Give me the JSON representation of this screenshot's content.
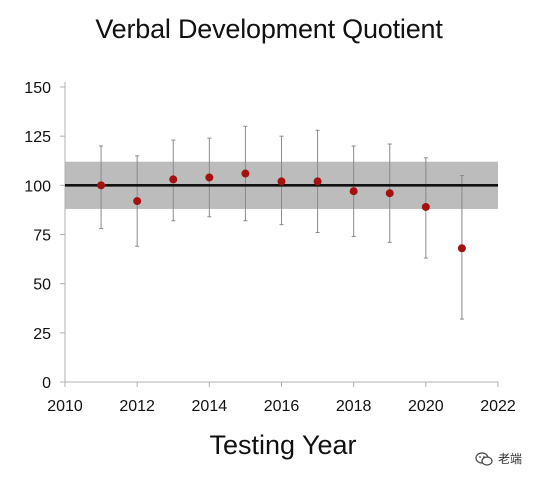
{
  "chart_data": {
    "type": "scatter",
    "title": "Verbal Development Quotient",
    "xlabel": "Testing Year",
    "ylabel": "",
    "xlim": [
      2010,
      2022
    ],
    "ylim": [
      0,
      150
    ],
    "xticks": [
      "2010",
      "2012",
      "2014",
      "2016",
      "2018",
      "2020",
      "2022"
    ],
    "yticks": [
      "0",
      "25",
      "50",
      "75",
      "100",
      "125",
      "150"
    ],
    "grid": false,
    "reference_line": 100,
    "reference_band": [
      88,
      112
    ],
    "series": [
      {
        "points": [
          {
            "x": 2011,
            "y": 100,
            "low": 78,
            "high": 120
          },
          {
            "x": 2012,
            "y": 92,
            "low": 69,
            "high": 115
          },
          {
            "x": 2013,
            "y": 103,
            "low": 82,
            "high": 123
          },
          {
            "x": 2014,
            "y": 104,
            "low": 84,
            "high": 124
          },
          {
            "x": 2015,
            "y": 106,
            "low": 82,
            "high": 130
          },
          {
            "x": 2016,
            "y": 102,
            "low": 80,
            "high": 125
          },
          {
            "x": 2017,
            "y": 102,
            "low": 76,
            "high": 128
          },
          {
            "x": 2018,
            "y": 97,
            "low": 74,
            "high": 120
          },
          {
            "x": 2019,
            "y": 96,
            "low": 71,
            "high": 121
          },
          {
            "x": 2020,
            "y": 89,
            "low": 63,
            "high": 114
          },
          {
            "x": 2021,
            "y": 68,
            "low": 32,
            "high": 105
          }
        ]
      }
    ]
  },
  "colors": {
    "band": "#bcbcbc",
    "reference_line": "#111111",
    "point": "#a3120f",
    "error_bar": "#8a8a8a",
    "axis": "#b0b0b0",
    "text": "#111111"
  },
  "watermark": {
    "icon": "wechat-icon",
    "text": "老端"
  }
}
